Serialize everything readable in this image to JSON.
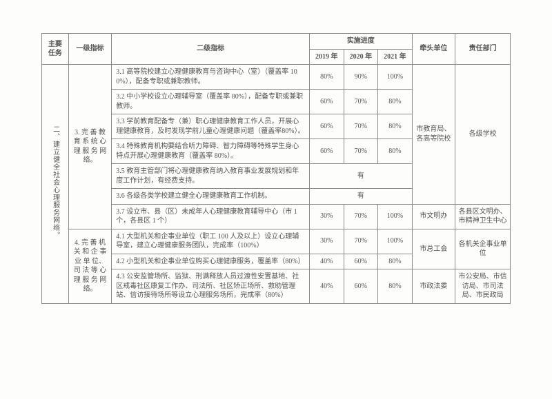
{
  "headers": {
    "task": "主要任务",
    "level1": "一级指标",
    "level2": "二级指标",
    "progress": "实施进度",
    "year2019": "2019 年",
    "year2020": "2020 年",
    "year2021": "2021 年",
    "lead": "牵头单位",
    "resp": "责任部门"
  },
  "task_label": "二、建立健全社会心理服务网络。",
  "section3": {
    "level1": "3. 完 善 教 育 系 统 心 理 服 务 网 络。",
    "lead": "市教育局、各高等院校",
    "resp": "各级学校",
    "rows": {
      "r1": {
        "desc": "3.1 高等院校建立心理健康教育与咨询中心（室）（覆盖率 100%），配备专职或兼职教师。",
        "y19": "80%",
        "y20": "90%",
        "y21": "100%"
      },
      "r2": {
        "desc": "3.2 中小学校设立心理辅导室（覆盖率 80%），配备专职或兼职教师。",
        "y19": "60%",
        "y20": "70%",
        "y21": "80%"
      },
      "r3": {
        "desc": "3.3 学前教育配备专（兼）职心理健康教育工作人员，开展心理健康教育，及时发现学前儿童心理健康问题（覆盖率80%）。",
        "y19": "60%",
        "y20": "70%",
        "y21": "80%"
      },
      "r4": {
        "desc": "3.4 特殊教育机构要结合听力障碍、智力障碍等特殊学生身心特点开展心理健康教育（覆盖率 80%）。",
        "y19": "60%",
        "y20": "70%",
        "y21": "80%"
      },
      "r5": {
        "desc": "3.5 教育主管部门将心理健康教育纳入教育事业发展规划和年度工作计划，有经费支持。",
        "merged": "有"
      },
      "r6": {
        "desc": "3.6 各级各类学校建立健全心理健康教育工作机制。",
        "merged": "有"
      },
      "r7": {
        "desc": "3.7 设立市、县（区）未成年人心理健康教育辅导中心（市 1 个，各县区 1 个）",
        "y19": "30%",
        "y20": "70%",
        "y21": "100%",
        "lead": "市文明办",
        "resp": "各县区文明办、市精神卫生中心"
      }
    }
  },
  "section4": {
    "level1": "4. 完 善 机 关 和 企 事 业 单 位、司 法 等 心 理 服 务 网 络。",
    "rows": {
      "r1": {
        "desc": "4.1 大型机关和企事业单位（职工 100 人及以上）设立心理辅导室，建立心理健康服务团队，完成率（100%）",
        "y19": "30%",
        "y20": "70%",
        "y21": "100%",
        "lead": "市总工会",
        "resp": "各机关企事业单位"
      },
      "r2": {
        "desc": "4.2 小型机关和企事业单位购买心理健康服务，覆盖率（80%）",
        "y19": "40%",
        "y20": "60%",
        "y21": "80%"
      },
      "r3": {
        "desc": "4.3 公安监管场所、监狱、刑满释放人员过渡性安置基地、社区戒毒社区康复工作办、司法所、社区矫正场所、救助管理站、信访接待场所等设立心理服务场所，完成率（80%）",
        "y19": "40%",
        "y20": "60%",
        "y21": "80%",
        "lead": "市政法委",
        "resp": "市公安局、市信访局、市司法局、市民政局"
      }
    }
  },
  "style": {
    "border_color": "#8a8a88",
    "text_color": "#555555",
    "background_color": "#fdfdfc",
    "font_size_pt": 10
  }
}
